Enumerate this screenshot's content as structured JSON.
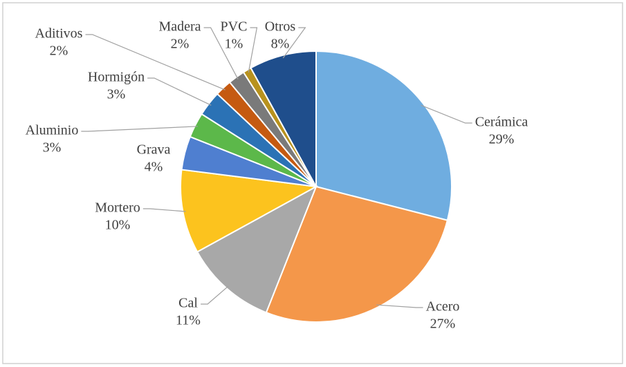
{
  "chart_data": {
    "type": "pie",
    "categories": [
      "Cerámica",
      "Acero",
      "Cal",
      "Mortero",
      "Grava",
      "Aluminio",
      "Hormigón",
      "Aditivos",
      "Madera",
      "PVC",
      "Otros"
    ],
    "values": [
      29,
      27,
      11,
      10,
      4,
      3,
      3,
      2,
      2,
      1,
      8
    ],
    "value_labels": [
      "29%",
      "27%",
      "11%",
      "10%",
      "4%",
      "3%",
      "3%",
      "2%",
      "2%",
      "1%",
      "8%"
    ],
    "colors": [
      "#6fade0",
      "#f4974a",
      "#a8a8a8",
      "#fcc31e",
      "#4f7fd0",
      "#5cb84a",
      "#2b72b5",
      "#c55a11",
      "#7a7a7a",
      "#b8921e",
      "#1f4e8c"
    ]
  }
}
